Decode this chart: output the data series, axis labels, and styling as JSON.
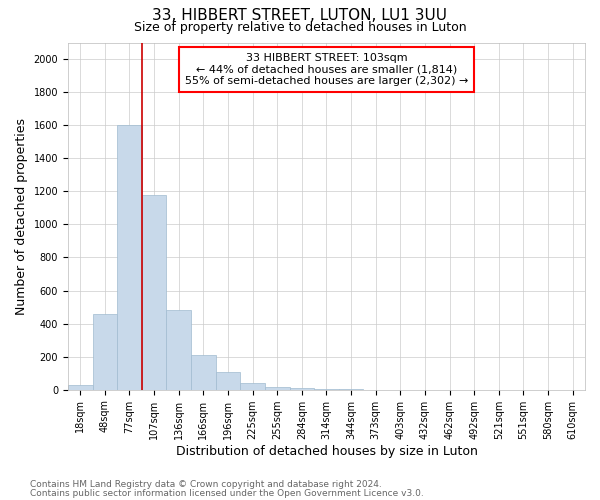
{
  "title": "33, HIBBERT STREET, LUTON, LU1 3UU",
  "subtitle": "Size of property relative to detached houses in Luton",
  "xlabel": "Distribution of detached houses by size in Luton",
  "ylabel": "Number of detached properties",
  "footnote1": "Contains HM Land Registry data © Crown copyright and database right 2024.",
  "footnote2": "Contains public sector information licensed under the Open Government Licence v3.0.",
  "categories": [
    "18sqm",
    "48sqm",
    "77sqm",
    "107sqm",
    "136sqm",
    "166sqm",
    "196sqm",
    "225sqm",
    "255sqm",
    "284sqm",
    "314sqm",
    "344sqm",
    "373sqm",
    "403sqm",
    "432sqm",
    "462sqm",
    "492sqm",
    "521sqm",
    "551sqm",
    "580sqm",
    "610sqm"
  ],
  "values": [
    30,
    460,
    1600,
    1180,
    480,
    210,
    110,
    40,
    15,
    10,
    5,
    5,
    0,
    0,
    0,
    0,
    0,
    0,
    0,
    0,
    0
  ],
  "bar_color": "#c8d9ea",
  "bar_edge_color": "#a0bbd0",
  "ylim": [
    0,
    2100
  ],
  "yticks": [
    0,
    200,
    400,
    600,
    800,
    1000,
    1200,
    1400,
    1600,
    1800,
    2000
  ],
  "annotation_box": {
    "text_line1": "33 HIBBERT STREET: 103sqm",
    "text_line2": "← 44% of detached houses are smaller (1,814)",
    "text_line3": "55% of semi-detached houses are larger (2,302) →"
  },
  "vline_color": "#cc0000",
  "vline_x_index": 2,
  "background_color": "#ffffff",
  "grid_color": "#cccccc",
  "title_fontsize": 11,
  "subtitle_fontsize": 9,
  "axis_label_fontsize": 9,
  "tick_fontsize": 7,
  "footnote_fontsize": 6.5,
  "annotation_fontsize": 8
}
